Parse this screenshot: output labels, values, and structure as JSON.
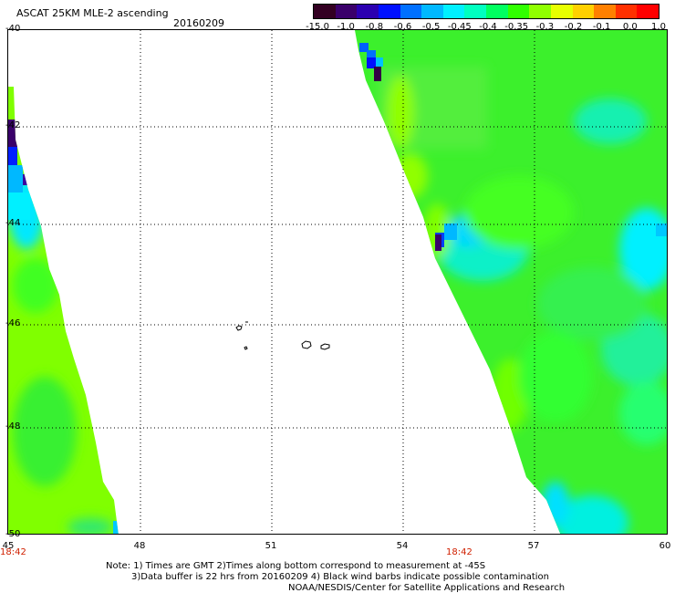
{
  "header": {
    "title": "ASCAT 25KM MLE-2 ascending",
    "date": "20160209"
  },
  "colorbar": {
    "colors": [
      "#330022",
      "#3a006a",
      "#2b00b0",
      "#0010ff",
      "#0070ff",
      "#00b8ff",
      "#00f0ff",
      "#00ffc0",
      "#00ff60",
      "#30ff00",
      "#90ff00",
      "#e8ff00",
      "#ffd000",
      "#ff8000",
      "#ff3000",
      "#ff0000"
    ],
    "labels": [
      "-15.0",
      "-1.0",
      "-0.8",
      "-0.6",
      "-0.5",
      "-0.45",
      "-0.4",
      "-0.35",
      "-0.3",
      "-0.2",
      "-0.1",
      "0.0",
      "1.0"
    ]
  },
  "axes": {
    "lat_labels": [
      "-40",
      "-42",
      "-44",
      "-46",
      "-48",
      "-50"
    ],
    "lon_labels": [
      "45",
      "48",
      "51",
      "54",
      "57",
      "60"
    ]
  },
  "times": [
    "18:42",
    "18:42"
  ],
  "notes": {
    "line1": "Note: 1) Times are GMT 2)Times along bottom correspond to measurement at -45S",
    "line2": "3)Data buffer is 22 hrs from 20160209 4) Black wind barbs indicate possible contamination",
    "line3": "NOAA/NESDIS/Center for Satellite Applications and Research"
  },
  "map": {
    "lat_range": [
      -50,
      -40
    ],
    "lon_range": [
      45,
      60
    ],
    "grid": "dotted",
    "swaths": [
      "left swath edge (45-47.5E)",
      "right swath (53.5-60E)"
    ]
  }
}
